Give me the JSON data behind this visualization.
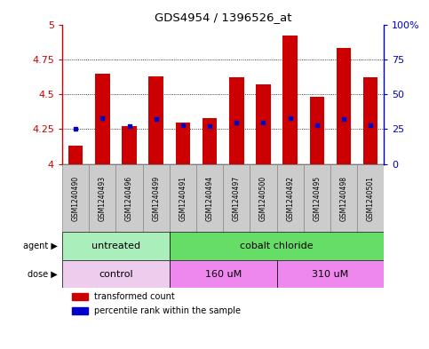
{
  "title": "GDS4954 / 1396526_at",
  "samples": [
    "GSM1240490",
    "GSM1240493",
    "GSM1240496",
    "GSM1240499",
    "GSM1240491",
    "GSM1240494",
    "GSM1240497",
    "GSM1240500",
    "GSM1240492",
    "GSM1240495",
    "GSM1240498",
    "GSM1240501"
  ],
  "transformed_count": [
    4.13,
    4.65,
    4.27,
    4.63,
    4.3,
    4.33,
    4.62,
    4.57,
    4.92,
    4.48,
    4.83,
    4.62
  ],
  "percentile_rank": [
    4.25,
    4.33,
    4.27,
    4.32,
    4.28,
    4.27,
    4.3,
    4.3,
    4.33,
    4.28,
    4.32,
    4.28
  ],
  "ylim": [
    4.0,
    5.0
  ],
  "yticks": [
    4.0,
    4.25,
    4.5,
    4.75,
    5.0
  ],
  "ytick_labels": [
    "4",
    "4.25",
    "4.5",
    "4.75",
    "5"
  ],
  "bar_color": "#cc0000",
  "dot_color": "#0000cc",
  "bar_bottom": 4.0,
  "agent_labels": [
    {
      "label": "untreated",
      "start": 0,
      "end": 3,
      "color": "#aaeebb"
    },
    {
      "label": "cobalt chloride",
      "start": 4,
      "end": 11,
      "color": "#66dd66"
    }
  ],
  "dose_labels": [
    {
      "label": "control",
      "start": 0,
      "end": 3,
      "color": "#eeccee"
    },
    {
      "label": "160 uM",
      "start": 4,
      "end": 7,
      "color": "#ee88ee"
    },
    {
      "label": "310 uM",
      "start": 8,
      "end": 11,
      "color": "#ee88ee"
    }
  ],
  "legend_items": [
    {
      "label": "transformed count",
      "color": "#cc0000"
    },
    {
      "label": "percentile rank within the sample",
      "color": "#0000cc"
    }
  ],
  "background_color": "#ffffff",
  "cell_color": "#cccccc",
  "cell_border_color": "#888888"
}
